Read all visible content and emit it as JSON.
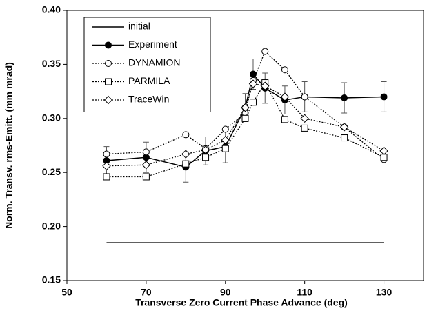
{
  "chart_data": {
    "type": "line",
    "xlabel": "Transverse Zero Current Phase Advance  (deg)",
    "ylabel": "Norm. Transv. rms-Emitt. (mm mrad)",
    "xlim": [
      50,
      140
    ],
    "xticks": [
      50,
      70,
      90,
      110,
      130
    ],
    "ylim": [
      0.15,
      0.4
    ],
    "yticks": [
      0.15,
      {
        "value": 0.2,
        "label": "0.20"
      },
      0.25,
      {
        "value": 0.3,
        "label": "0.30"
      },
      0.35,
      {
        "value": 0.4,
        "label": "0.40"
      }
    ],
    "legend": "upper left",
    "series": [
      {
        "name": "initial",
        "color": "#000000",
        "line": "solid",
        "marker": "none",
        "x": [
          60,
          130
        ],
        "values": [
          0.185,
          0.185
        ]
      },
      {
        "name": "Experiment",
        "color": "#000000",
        "line": "solid",
        "marker": "filled-circle",
        "x": [
          60,
          70,
          80,
          85,
          90,
          95,
          97,
          100,
          105,
          110,
          120,
          130
        ],
        "values": [
          0.261,
          0.264,
          0.255,
          0.27,
          0.274,
          0.31,
          0.341,
          0.328,
          0.317,
          0.32,
          0.319,
          0.32
        ],
        "errors": [
          0.013,
          0.014,
          0.014,
          0.013,
          0.015,
          0.013,
          0.014,
          0.014,
          0.013,
          0.014,
          0.014,
          0.014
        ]
      },
      {
        "name": "DYNAMION",
        "color": "#000000",
        "line": "dotted",
        "marker": "open-circle",
        "x": [
          60,
          70,
          80,
          85,
          90,
          95,
          97,
          100,
          105,
          110,
          120,
          130
        ],
        "values": [
          0.267,
          0.269,
          0.285,
          0.272,
          0.29,
          0.305,
          0.335,
          0.362,
          0.345,
          0.32,
          0.292,
          0.262
        ]
      },
      {
        "name": "PARMILA",
        "color": "#000000",
        "line": "dotted",
        "marker": "open-square",
        "x": [
          60,
          70,
          80,
          85,
          90,
          95,
          97,
          100,
          105,
          110,
          120,
          130
        ],
        "values": [
          0.246,
          0.246,
          0.258,
          0.264,
          0.272,
          0.3,
          0.315,
          0.333,
          0.299,
          0.291,
          0.282,
          0.264
        ]
      },
      {
        "name": "TraceWin",
        "color": "#000000",
        "line": "dotted",
        "marker": "open-diamond",
        "x": [
          60,
          70,
          80,
          85,
          90,
          95,
          97,
          100,
          105,
          110,
          120,
          130
        ],
        "values": [
          0.256,
          0.257,
          0.267,
          0.271,
          0.28,
          0.31,
          0.332,
          0.33,
          0.32,
          0.3,
          0.292,
          0.27
        ]
      }
    ]
  }
}
